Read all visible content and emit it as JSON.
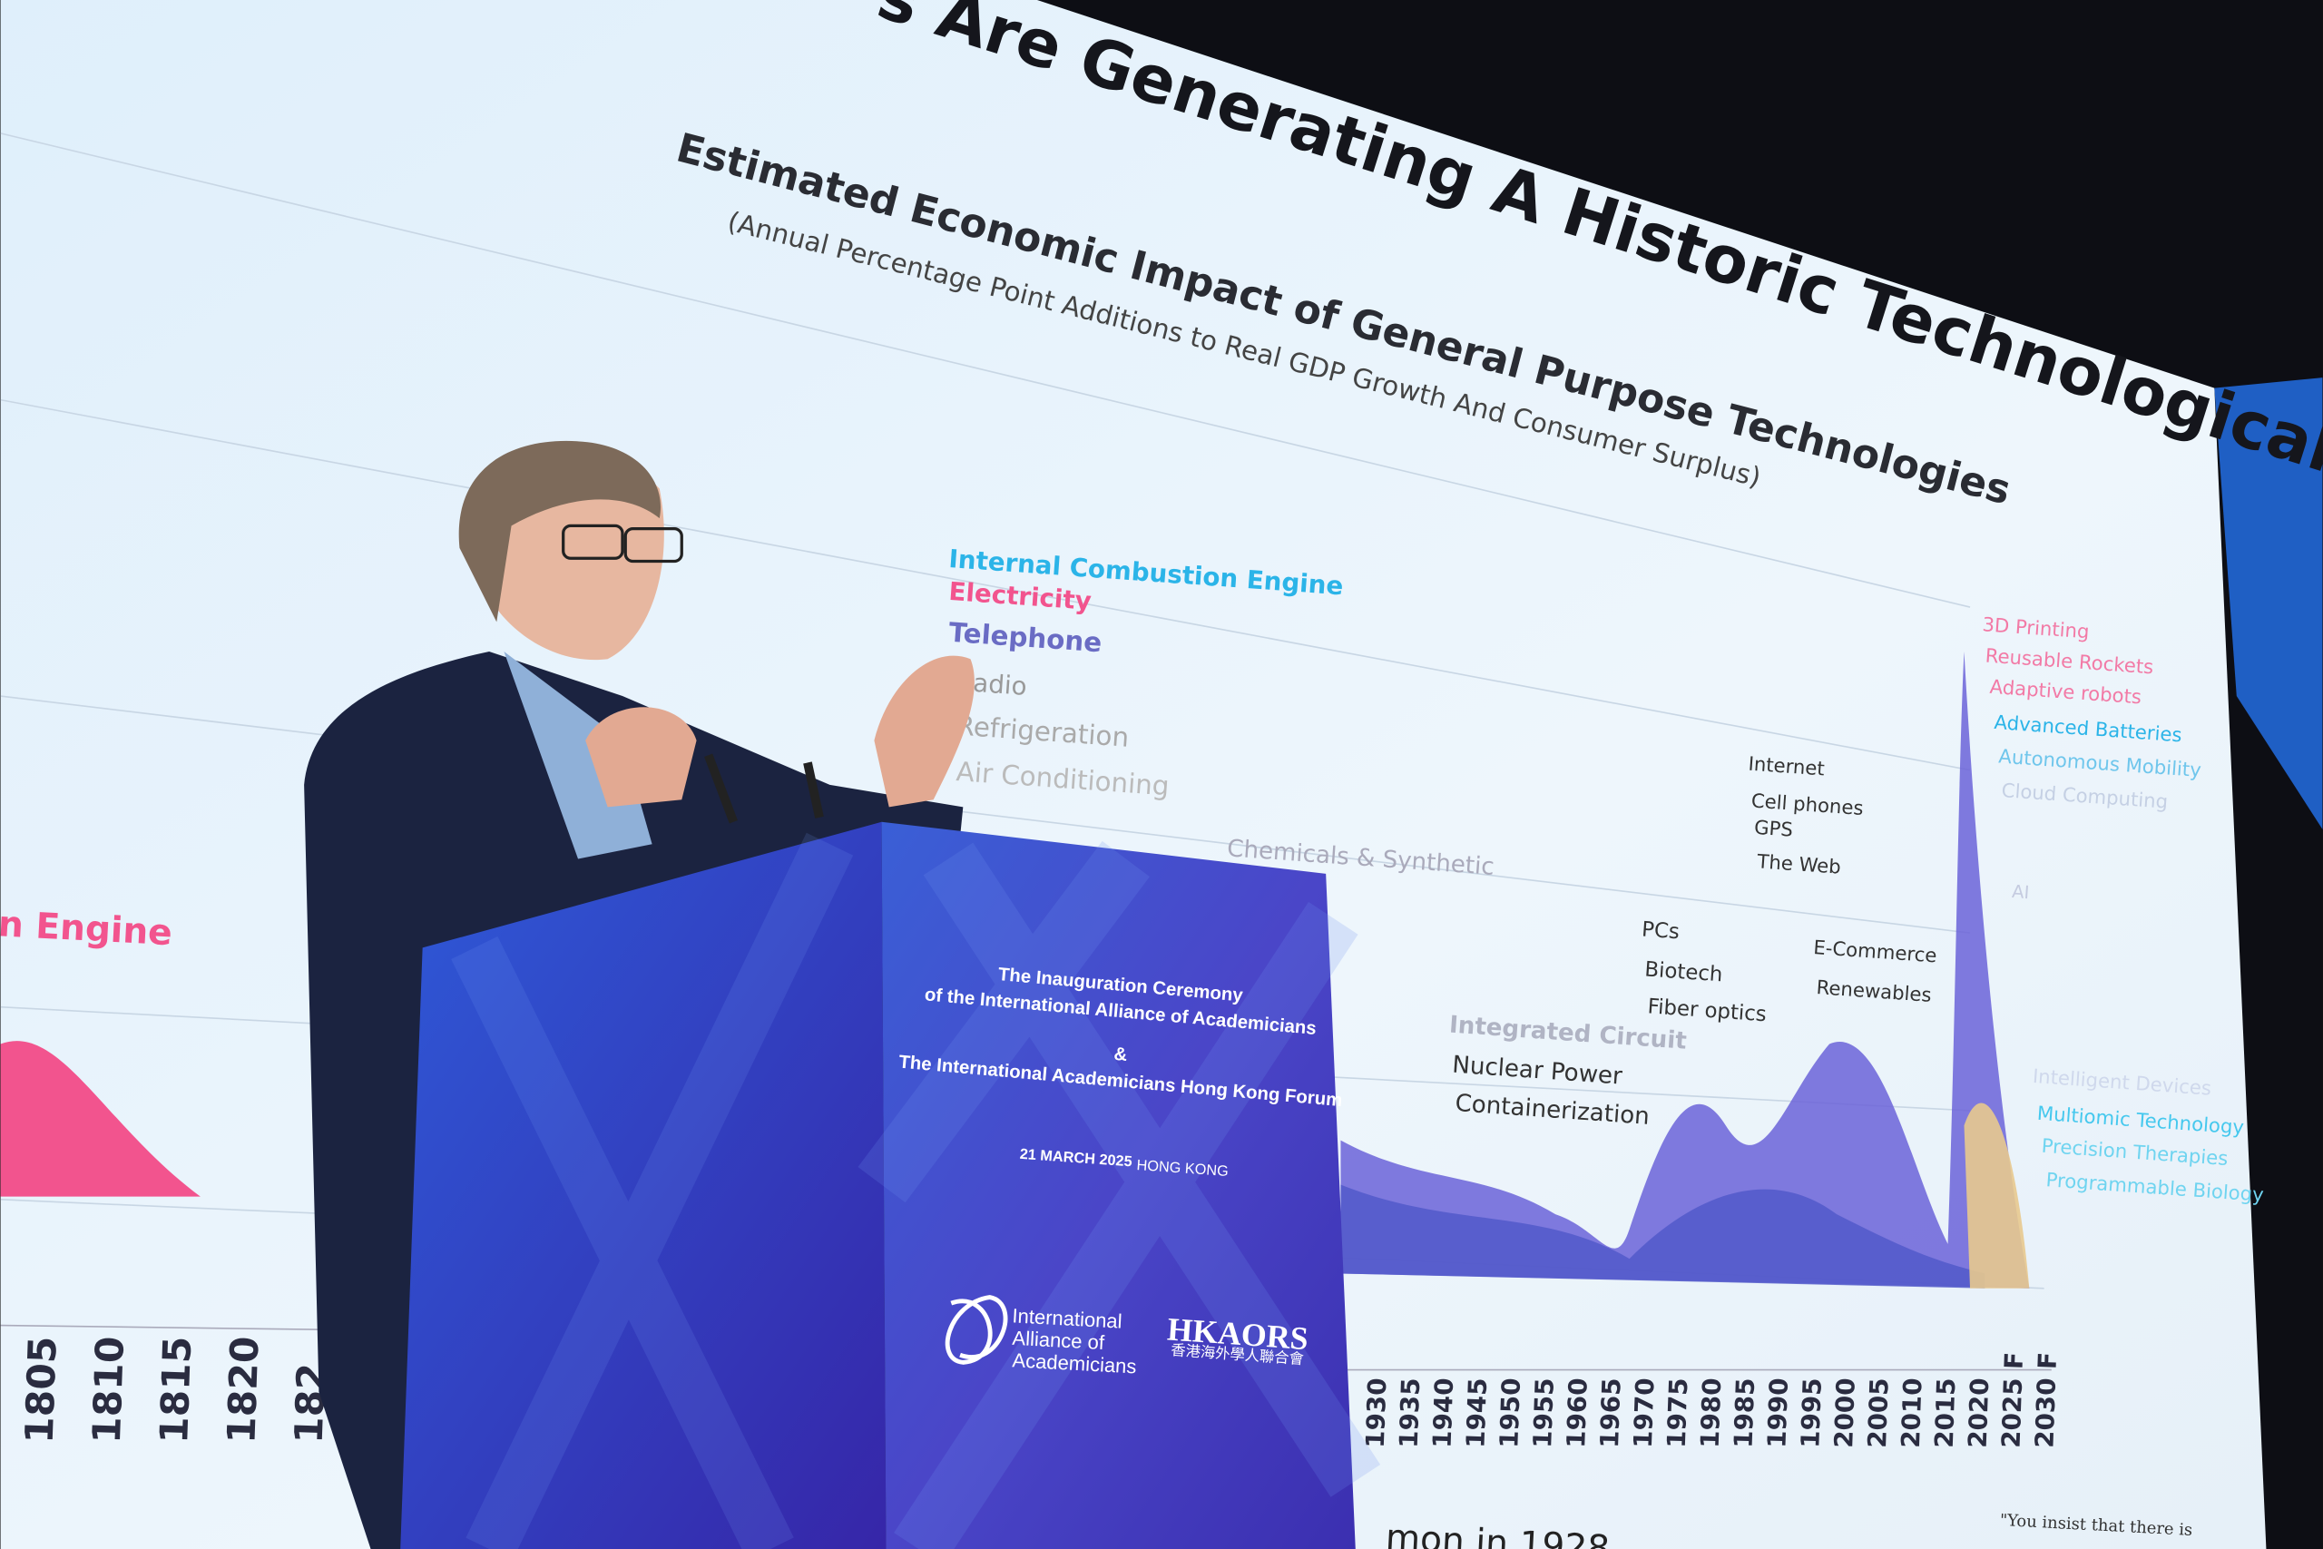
{
  "slide": {
    "title": "s Are Generating A Historic Technological Wave",
    "subtitle": "Estimated Economic Impact of General Purpose Technologies",
    "note": "(Annual Percentage Point Additions to Real GDP Growth And Consumer Surplus)",
    "left_label": "n Engine",
    "labels": [
      "Internal Combustion Engine",
      "Electricity",
      "Telephone",
      "Radio",
      "Refrigeration",
      "Air Conditioning",
      "Chemicals & Synthetic",
      "Integrated Circuit",
      "Nuclear Power",
      "Containerization",
      "PCs",
      "Biotech",
      "Fiber optics",
      "Internet",
      "Cell phones",
      "GPS",
      "The Web",
      "E-Commerce",
      "Renewables",
      "3D Printing",
      "Reusable Rockets",
      "Adaptive robots",
      "Advanced Batteries",
      "Autonomous Mobility",
      "Cloud Computing",
      "AI",
      "Intelligent Devices",
      "Multiomic Technology",
      "Precision Therapies",
      "Programmable Biology"
    ],
    "years_left": [
      "1805",
      "1810",
      "1815",
      "1820",
      "182"
    ],
    "years_right": [
      "1930",
      "1935",
      "1940",
      "1945",
      "1950",
      "1955",
      "1960",
      "1965",
      "1970",
      "1975",
      "1980",
      "1985",
      "1990",
      "1995",
      "2000",
      "2005",
      "2010",
      "2015",
      "2020",
      "2025 F",
      "2030 F"
    ],
    "footer_left": "mon in 1928",
    "footer_right": "\"You insist that there is"
  },
  "podium": {
    "lines": [
      "The Inauguration Ceremony",
      "of the International Alliance of Academicians",
      "&",
      "The International Academicians Hong Kong Forum"
    ],
    "date": "21 MARCH 2025",
    "place": "HONG KONG",
    "logo_left": [
      "International",
      "Alliance of",
      "Academicians"
    ],
    "logo_right": "HKAORS",
    "logo_right_sub": "香港海外學人聯合會"
  }
}
